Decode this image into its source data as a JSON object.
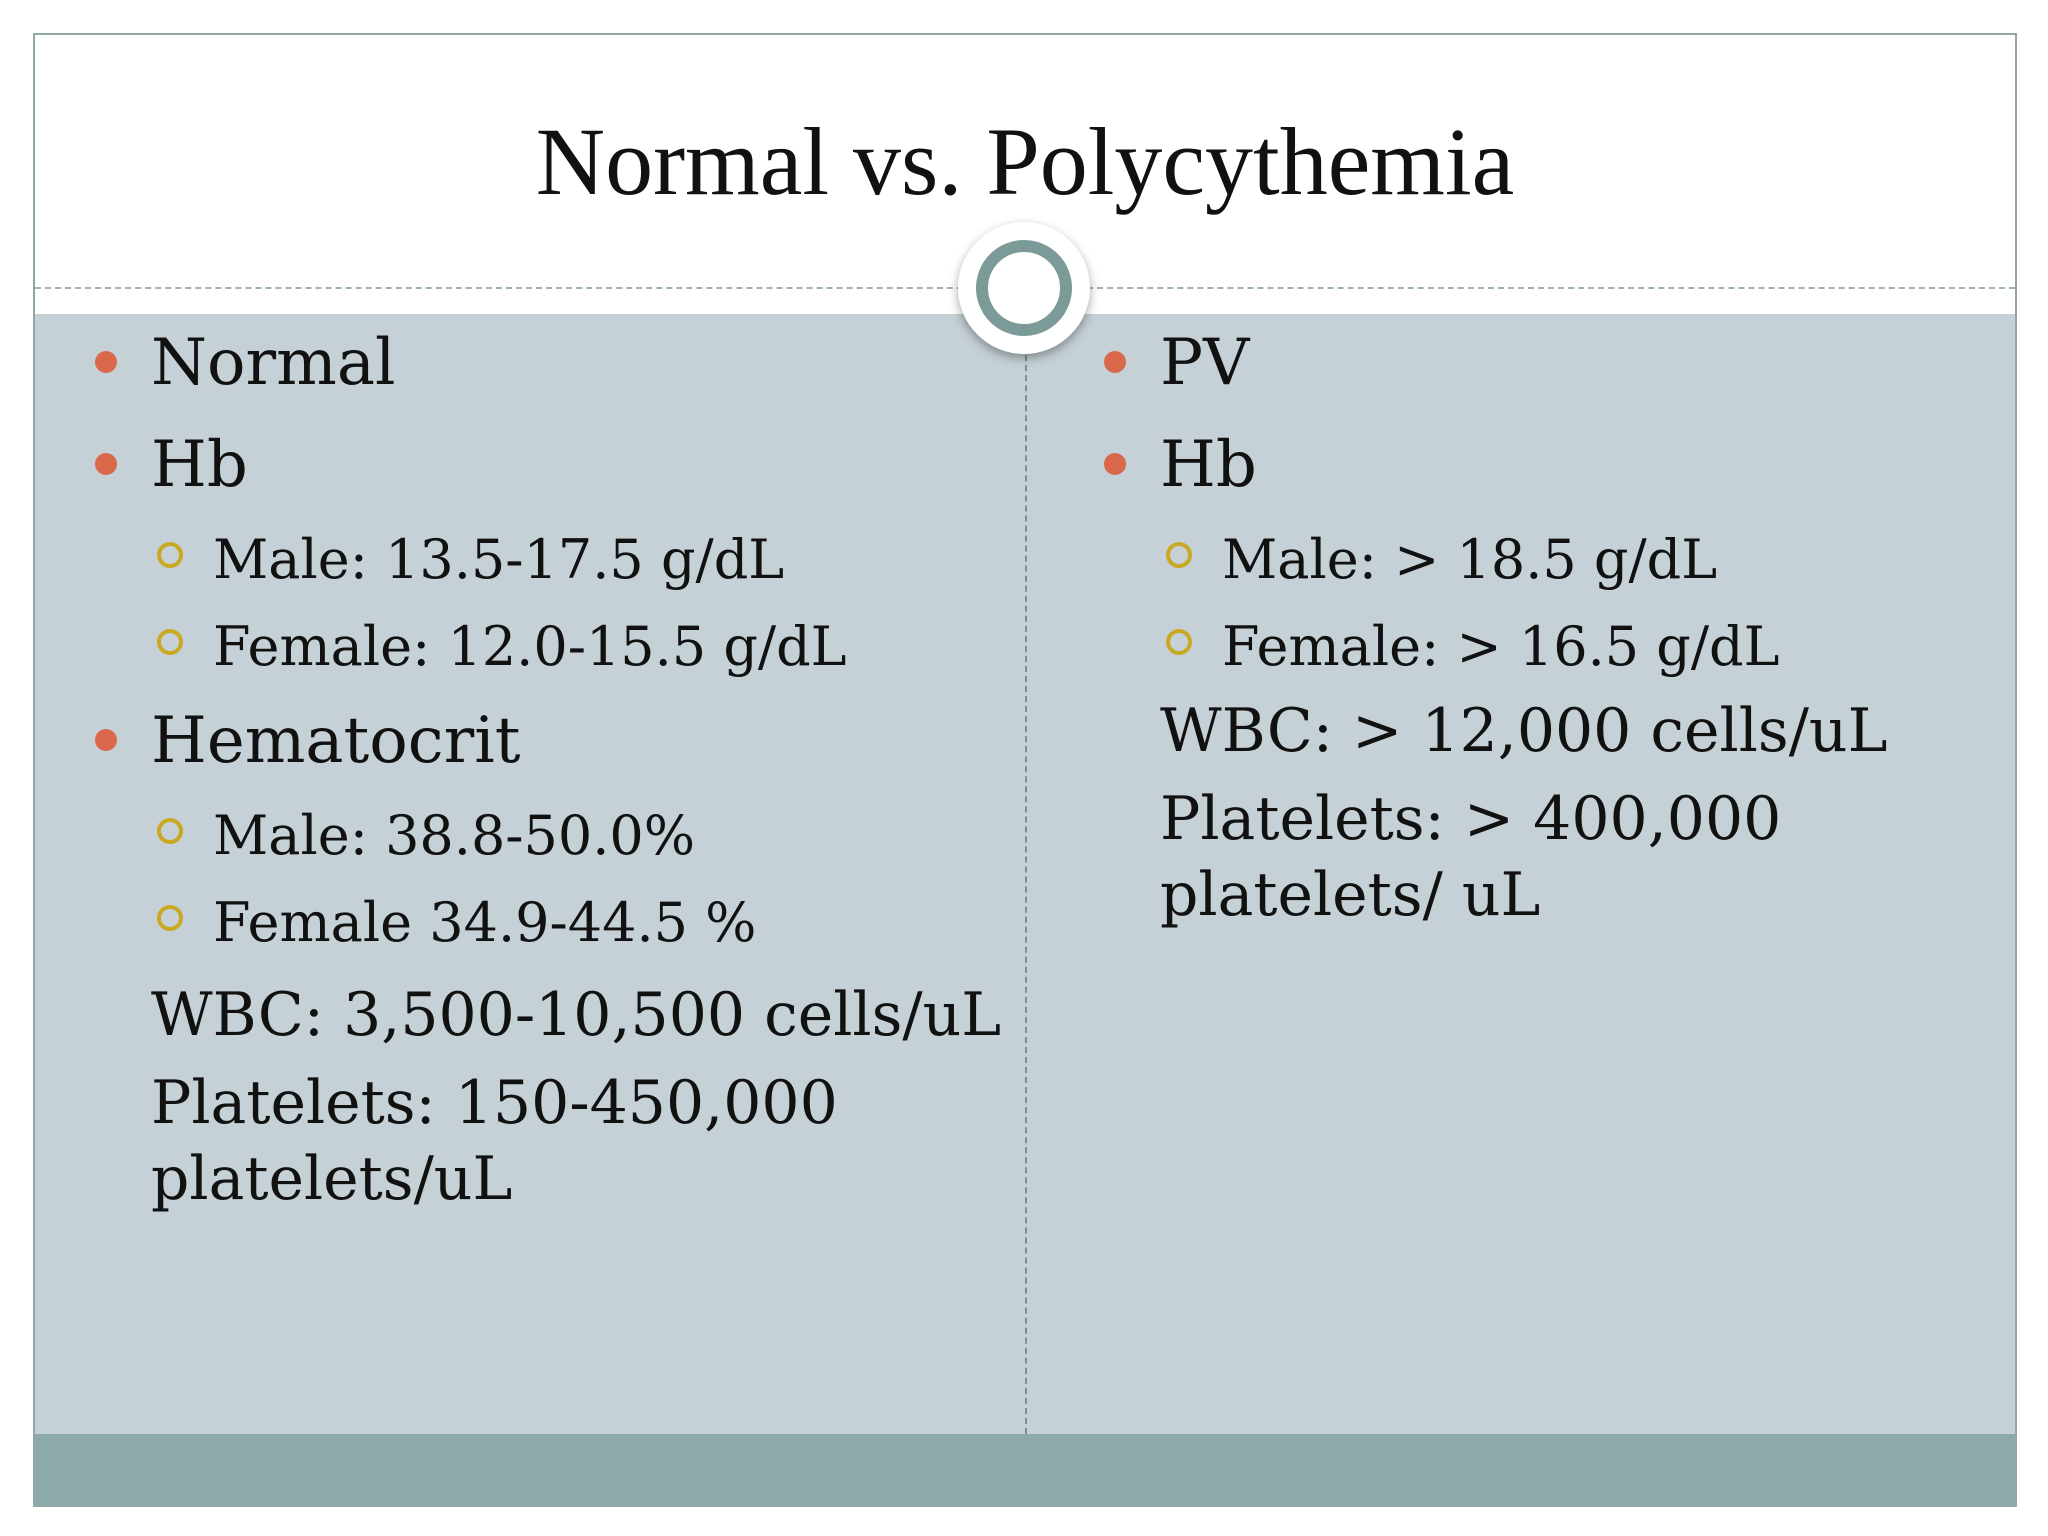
{
  "slide": {
    "title": "Normal vs. Polycythemia",
    "colors": {
      "title_background": "#ffffff",
      "content_background": "#c5d1d6",
      "footer_band": "#8caaa8",
      "bullet_level1": "#d9694a",
      "bullet_level2": "#c9a824",
      "badge_ring": "#7b9a98"
    }
  },
  "left": {
    "heading": "Normal",
    "hb_label": "Hb",
    "hb_male": "Male: 13.5-17.5 g/dL",
    "hb_female": "Female: 12.0-15.5 g/dL",
    "hct_label": "Hematocrit",
    "hct_male": "Male: 38.8-50.0%",
    "hct_female": "Female 34.9-44.5 %",
    "wbc": "WBC: 3,500-10,500 cells/uL",
    "platelets_line1": "Platelets: 150-450,000",
    "platelets_line2": "platelets/uL"
  },
  "right": {
    "heading": "PV",
    "hb_label": "Hb",
    "hb_male": "Male: > 18.5 g/dL",
    "hb_female": "Female: > 16.5 g/dL",
    "wbc": "WBC: > 12,000 cells/uL",
    "platelets_line1": "Platelets: > 400,000",
    "platelets_line2": "platelets/ uL"
  }
}
